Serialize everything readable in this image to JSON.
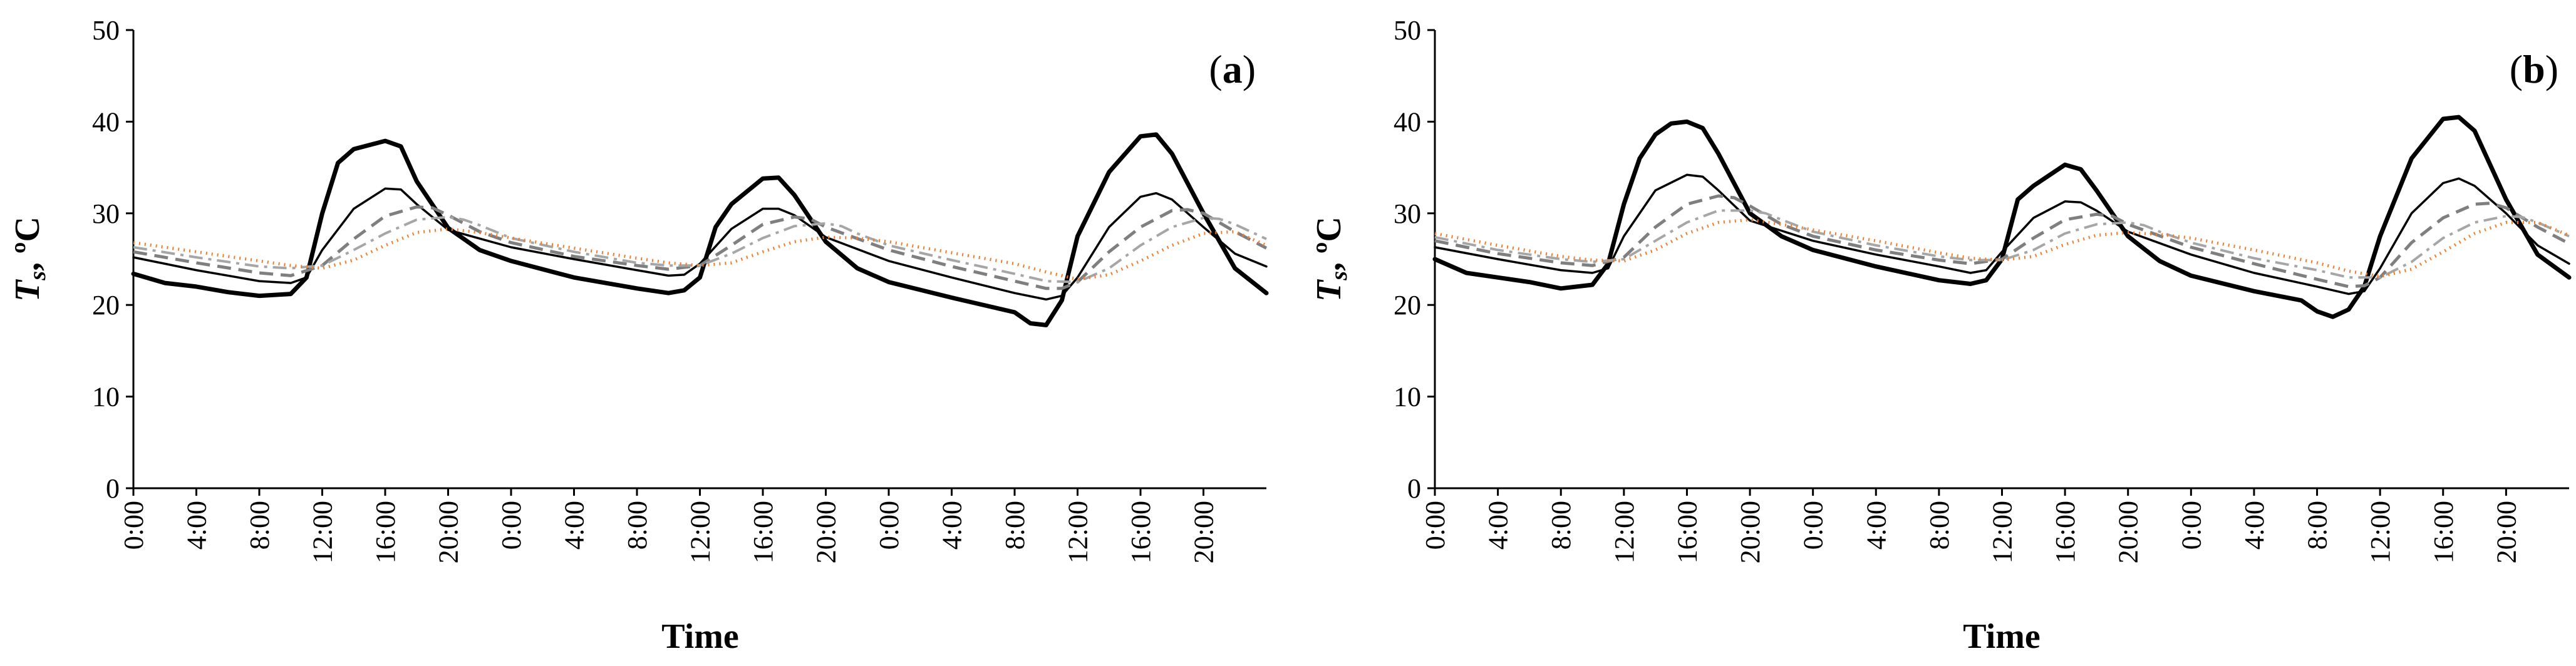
{
  "colors": {
    "black": "#000000",
    "dashed_gray": "#7f7f7f",
    "dashdot_gray": "#a6a6a6",
    "orange_dotted": "#ed7d31"
  },
  "chart_data": [
    {
      "type": "line",
      "panel_label": "(a)",
      "panel_label_parts": [
        "(",
        "a",
        ")"
      ],
      "xlabel": "Time",
      "ylabel_main": "T",
      "ylabel_sub": "s",
      "ylabel_unit": ", ºC",
      "ylim": [
        0,
        50
      ],
      "yticks": [
        "0",
        "10",
        "20",
        "30",
        "40",
        "50"
      ],
      "x_hours_range": [
        0,
        72
      ],
      "xticks": [
        "0:00",
        "4:00",
        "8:00",
        "12:00",
        "16:00",
        "20:00",
        "0:00",
        "4:00",
        "8:00",
        "12:00",
        "16:00",
        "20:00",
        "0:00",
        "4:00",
        "8:00",
        "12:00",
        "16:00",
        "20:00"
      ],
      "series": [
        {
          "name": "thick-solid",
          "style": "thick",
          "x": [
            0,
            2,
            4,
            6,
            8,
            10,
            11,
            12,
            13,
            14,
            16,
            17,
            18,
            20,
            22,
            24,
            28,
            32,
            34,
            35,
            36,
            37,
            38,
            40,
            41,
            42,
            44,
            46,
            48,
            52,
            56,
            57,
            58,
            59,
            60,
            62,
            64,
            65,
            66,
            68,
            70,
            72
          ],
          "values": [
            23.4,
            22.4,
            22.0,
            21.4,
            21.0,
            21.2,
            23.0,
            30.0,
            35.5,
            37.0,
            37.9,
            37.3,
            33.5,
            28.4,
            26.0,
            24.8,
            23.0,
            21.8,
            21.3,
            21.6,
            23.0,
            28.5,
            31.0,
            33.8,
            33.9,
            32.0,
            26.9,
            24.0,
            22.5,
            20.8,
            19.2,
            18.0,
            17.8,
            20.5,
            27.5,
            34.5,
            38.4,
            38.6,
            36.5,
            30.0,
            24.0,
            21.3
          ]
        },
        {
          "name": "thin-solid",
          "style": "thin",
          "x": [
            0,
            4,
            8,
            10,
            11,
            12,
            14,
            16,
            17,
            18,
            20,
            24,
            28,
            32,
            34,
            35,
            36,
            38,
            40,
            41,
            42,
            44,
            48,
            52,
            56,
            58,
            59,
            60,
            62,
            64,
            65,
            66,
            68,
            70,
            72
          ],
          "values": [
            25.2,
            23.8,
            22.6,
            22.4,
            23.0,
            26.0,
            30.5,
            32.7,
            32.6,
            31.0,
            28.2,
            26.3,
            25.0,
            23.8,
            23.2,
            23.3,
            24.5,
            28.3,
            30.5,
            30.5,
            29.8,
            27.4,
            24.8,
            23.0,
            21.3,
            20.6,
            21.0,
            23.0,
            28.5,
            31.8,
            32.2,
            31.5,
            28.5,
            25.6,
            24.2
          ]
        },
        {
          "name": "dashed-gray",
          "style": "dashed",
          "x": [
            0,
            4,
            8,
            10,
            12,
            14,
            16,
            18,
            19,
            20,
            22,
            24,
            28,
            32,
            34,
            36,
            38,
            40,
            42,
            43,
            44,
            48,
            52,
            56,
            58,
            59,
            60,
            62,
            64,
            66,
            67,
            68,
            70,
            72
          ],
          "values": [
            25.8,
            24.6,
            23.5,
            23.2,
            24.3,
            27.2,
            29.7,
            30.7,
            30.6,
            29.8,
            28.0,
            26.8,
            25.3,
            24.3,
            23.9,
            24.3,
            26.5,
            28.8,
            29.6,
            29.4,
            28.5,
            26.0,
            24.2,
            22.6,
            21.8,
            21.8,
            22.5,
            25.8,
            28.5,
            30.3,
            30.4,
            30.0,
            28.0,
            26.2
          ]
        },
        {
          "name": "dashdot-gray",
          "style": "dashdot",
          "x": [
            0,
            4,
            8,
            10,
            12,
            14,
            16,
            18,
            20,
            21,
            22,
            24,
            28,
            32,
            34,
            36,
            38,
            40,
            42,
            44,
            45,
            46,
            48,
            52,
            56,
            58,
            60,
            62,
            64,
            66,
            68,
            69,
            70,
            72
          ],
          "values": [
            26.3,
            25.2,
            24.2,
            24.0,
            24.3,
            26.0,
            27.8,
            29.3,
            29.6,
            29.3,
            28.7,
            27.3,
            25.8,
            24.6,
            24.3,
            24.3,
            25.6,
            27.3,
            28.6,
            28.9,
            28.6,
            27.8,
            26.5,
            24.9,
            23.4,
            22.6,
            22.5,
            24.0,
            26.5,
            28.5,
            29.5,
            29.4,
            28.8,
            27.2
          ]
        },
        {
          "name": "orange-dotted",
          "style": "dotted",
          "x": [
            0,
            4,
            8,
            10,
            12,
            14,
            16,
            18,
            20,
            22,
            24,
            28,
            32,
            34,
            36,
            38,
            40,
            42,
            44,
            46,
            48,
            52,
            56,
            58,
            60,
            62,
            64,
            66,
            68,
            70,
            72
          ],
          "values": [
            26.8,
            25.8,
            24.8,
            24.3,
            24.0,
            24.9,
            26.5,
            27.9,
            28.3,
            27.9,
            27.3,
            26.2,
            25.1,
            24.6,
            24.3,
            24.6,
            25.8,
            26.9,
            27.4,
            27.3,
            26.9,
            25.7,
            24.5,
            23.6,
            22.8,
            23.3,
            24.8,
            26.5,
            27.8,
            28.0,
            26.5
          ]
        }
      ]
    },
    {
      "type": "line",
      "panel_label": "(b)",
      "panel_label_parts": [
        "(",
        "b",
        ")"
      ],
      "xlabel": "Time",
      "ylabel_main": "T",
      "ylabel_sub": "s",
      "ylabel_unit": ", ºC",
      "ylim": [
        0,
        50
      ],
      "yticks": [
        "0",
        "10",
        "20",
        "30",
        "40",
        "50"
      ],
      "x_hours_range": [
        0,
        72
      ],
      "xticks": [
        "0:00",
        "4:00",
        "8:00",
        "12:00",
        "16:00",
        "20:00",
        "0:00",
        "4:00",
        "8:00",
        "12:00",
        "16:00",
        "20:00",
        "0:00",
        "4:00",
        "8:00",
        "12:00",
        "16:00",
        "20:00"
      ],
      "series": [
        {
          "name": "thick-solid",
          "style": "thick",
          "x": [
            0,
            2,
            4,
            6,
            8,
            10,
            11,
            12,
            13,
            14,
            15,
            16,
            17,
            18,
            20,
            22,
            24,
            28,
            32,
            34,
            35,
            36,
            37,
            38,
            40,
            41,
            42,
            44,
            46,
            48,
            52,
            55,
            56,
            57,
            58,
            59,
            60,
            62,
            64,
            65,
            66,
            68,
            70,
            72
          ],
          "values": [
            25.0,
            23.5,
            23.0,
            22.5,
            21.8,
            22.2,
            24.5,
            31.0,
            36.0,
            38.6,
            39.8,
            40.0,
            39.3,
            36.5,
            30.0,
            27.5,
            26.0,
            24.2,
            22.7,
            22.3,
            22.7,
            25.0,
            31.5,
            33.0,
            35.3,
            34.8,
            32.5,
            27.5,
            24.8,
            23.2,
            21.5,
            20.5,
            19.3,
            18.7,
            19.5,
            22.0,
            27.5,
            36.0,
            40.3,
            40.5,
            39.0,
            31.5,
            25.5,
            23.0
          ]
        },
        {
          "name": "thin-solid",
          "style": "thin",
          "x": [
            0,
            4,
            8,
            10,
            11,
            12,
            14,
            16,
            17,
            18,
            20,
            24,
            28,
            32,
            34,
            35,
            36,
            38,
            40,
            41,
            42,
            44,
            48,
            52,
            56,
            58,
            59,
            60,
            62,
            64,
            65,
            66,
            68,
            70,
            72
          ],
          "values": [
            26.3,
            25.0,
            23.8,
            23.5,
            24.0,
            27.5,
            32.5,
            34.2,
            34.0,
            32.5,
            29.2,
            27.0,
            25.5,
            24.2,
            23.5,
            23.8,
            25.8,
            29.5,
            31.3,
            31.2,
            30.3,
            28.0,
            25.5,
            23.5,
            22.0,
            21.2,
            21.5,
            24.0,
            30.0,
            33.3,
            33.8,
            33.0,
            30.0,
            26.5,
            24.5
          ]
        },
        {
          "name": "dashed-gray",
          "style": "dashed",
          "x": [
            0,
            4,
            8,
            10,
            12,
            14,
            16,
            18,
            19,
            20,
            22,
            24,
            28,
            32,
            34,
            36,
            38,
            40,
            42,
            43,
            44,
            48,
            52,
            56,
            58,
            59,
            60,
            62,
            64,
            66,
            67,
            68,
            70,
            72
          ],
          "values": [
            27.0,
            25.6,
            24.6,
            24.3,
            25.2,
            28.5,
            31.0,
            31.9,
            31.7,
            30.8,
            28.8,
            27.5,
            26.0,
            24.9,
            24.5,
            25.0,
            27.3,
            29.3,
            29.9,
            29.7,
            28.8,
            26.3,
            24.5,
            22.8,
            22.0,
            22.1,
            23.0,
            26.8,
            29.5,
            31.0,
            31.1,
            30.6,
            28.5,
            26.7
          ]
        },
        {
          "name": "dashdot-gray",
          "style": "dashdot",
          "x": [
            0,
            4,
            8,
            10,
            12,
            14,
            16,
            18,
            20,
            21,
            22,
            24,
            28,
            32,
            34,
            36,
            38,
            40,
            42,
            44,
            45,
            46,
            48,
            52,
            56,
            58,
            60,
            62,
            64,
            66,
            68,
            69,
            70,
            72
          ],
          "values": [
            27.4,
            26.0,
            25.0,
            24.7,
            25.0,
            27.0,
            29.0,
            30.3,
            30.3,
            30.0,
            29.3,
            28.0,
            26.5,
            25.3,
            24.9,
            24.9,
            26.0,
            27.8,
            28.8,
            29.0,
            28.7,
            28.0,
            26.8,
            25.1,
            23.8,
            23.0,
            23.0,
            24.7,
            27.3,
            29.0,
            29.7,
            29.6,
            29.0,
            27.5
          ]
        },
        {
          "name": "orange-dotted",
          "style": "dotted",
          "x": [
            0,
            4,
            8,
            10,
            12,
            14,
            16,
            18,
            20,
            22,
            24,
            28,
            32,
            34,
            36,
            38,
            40,
            42,
            44,
            46,
            48,
            52,
            56,
            58,
            60,
            62,
            64,
            66,
            68,
            70,
            72
          ],
          "values": [
            27.8,
            26.5,
            25.3,
            24.9,
            24.8,
            26.0,
            27.8,
            29.0,
            29.3,
            28.8,
            28.2,
            27.0,
            25.7,
            25.1,
            24.9,
            25.3,
            26.6,
            27.6,
            27.9,
            27.7,
            27.3,
            26.0,
            24.6,
            23.7,
            23.1,
            23.9,
            25.8,
            27.8,
            29.0,
            29.0,
            27.6
          ]
        }
      ]
    }
  ]
}
